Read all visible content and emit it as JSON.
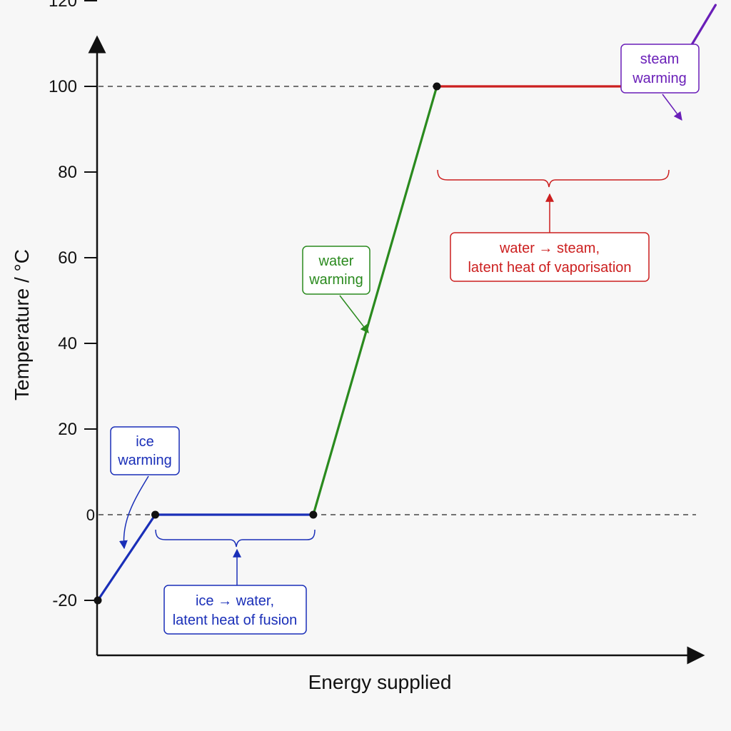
{
  "chart_data": {
    "type": "line",
    "title": "",
    "xlabel": "Energy supplied",
    "ylabel": "Temperature / °C",
    "ylim": [
      -30,
      127
    ],
    "y_ticks": [
      {
        "value": 120,
        "label": "120"
      },
      {
        "value": 100,
        "label": "100"
      },
      {
        "value": 80,
        "label": "80"
      },
      {
        "value": 60,
        "label": "60"
      },
      {
        "value": 40,
        "label": "40"
      },
      {
        "value": 20,
        "label": "20"
      },
      {
        "value": 0,
        "label": "0"
      },
      {
        "value": -20,
        "label": "-20"
      }
    ],
    "grid": false,
    "reference_lines": [
      0,
      100
    ],
    "series": [
      {
        "color": "#1a2fb8",
        "points": [
          [
            0,
            -20
          ],
          [
            1,
            0
          ]
        ]
      },
      {
        "color": "#1a2fb8",
        "points": [
          [
            1,
            0
          ],
          [
            3.75,
            0
          ]
        ]
      },
      {
        "color": "#2a8a1e",
        "points": [
          [
            3.75,
            0
          ],
          [
            5.9,
            100
          ]
        ]
      },
      {
        "color": "#cc1f1f",
        "points": [
          [
            5.9,
            100
          ],
          [
            9.9,
            100
          ]
        ]
      },
      {
        "color": "#6a1fb8",
        "points": [
          [
            9.9,
            100
          ],
          [
            10.75,
            119
          ]
        ]
      }
    ],
    "markers": [
      [
        0,
        -20
      ],
      [
        1,
        0
      ],
      [
        3.75,
        0
      ],
      [
        5.9,
        100
      ],
      [
        9.9,
        100
      ]
    ],
    "annotations": [
      {
        "lines": [
          "ice",
          "warming"
        ],
        "color": "#1a2fb8"
      },
      {
        "lines": [
          "ice → water,",
          "latent heat of fusion"
        ],
        "color": "#1a2fb8"
      },
      {
        "lines": [
          "water",
          "warming"
        ],
        "color": "#2a8a1e"
      },
      {
        "lines": [
          "water → steam,",
          "latent heat of vaporisation"
        ],
        "color": "#cc1f1f"
      },
      {
        "lines": [
          "steam",
          "warming"
        ],
        "color": "#6a1fb8"
      }
    ]
  }
}
